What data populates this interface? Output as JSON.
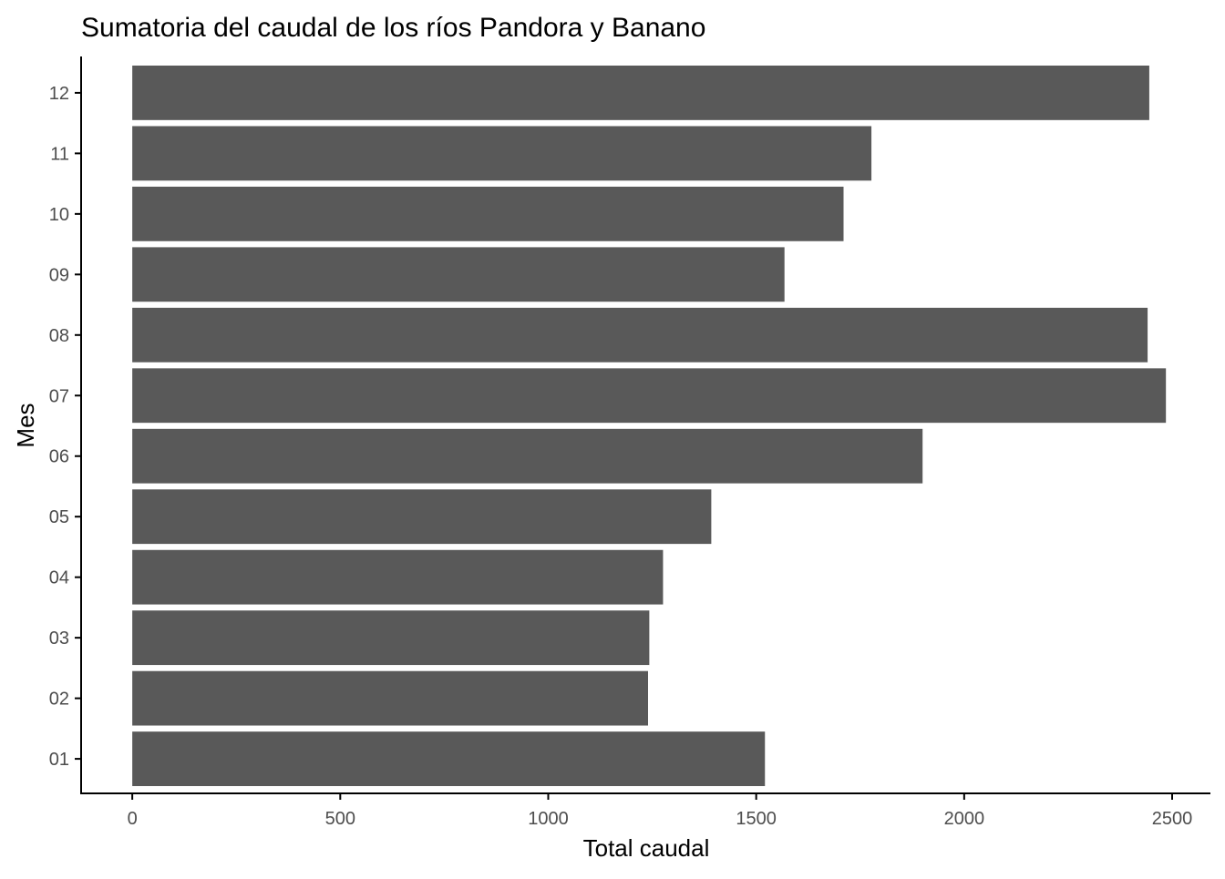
{
  "chart_data": {
    "type": "bar",
    "orientation": "horizontal",
    "title": "Sumatoria del caudal de los ríos Pandora y Banano",
    "xlabel": "Total caudal",
    "ylabel": "Mes",
    "categories": [
      "01",
      "02",
      "03",
      "04",
      "05",
      "06",
      "07",
      "08",
      "09",
      "10",
      "11",
      "12"
    ],
    "values": [
      1521,
      1240,
      1243,
      1276,
      1392,
      1900,
      2485,
      2441,
      1568,
      1710,
      1777,
      2445
    ],
    "xlim": [
      -123,
      2592
    ],
    "x_ticks": [
      0,
      500,
      1000,
      1500,
      2000,
      2500
    ],
    "bar_color": "#595959",
    "grid": false,
    "legend": "none"
  }
}
